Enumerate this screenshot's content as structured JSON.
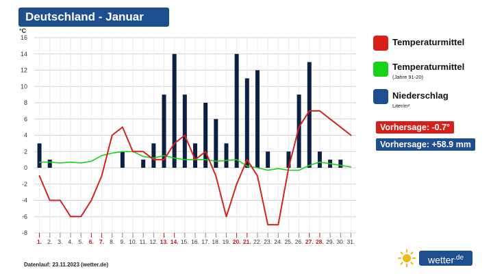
{
  "title": "Deutschland - Januar",
  "colors": {
    "title_bg": "#1d4e8d",
    "temperature": "#d8201a",
    "climate": "#18d418",
    "precipitation": "#0c1f44",
    "precip_legend": "#1d4e8d",
    "weekend_label": "#c0141a"
  },
  "chart_data": {
    "type": "bar+line",
    "unit_label": "°C",
    "ylim": [
      -8,
      16
    ],
    "yticks": [
      -8,
      -6,
      -4,
      -2,
      0,
      2,
      4,
      6,
      8,
      10,
      12,
      14,
      16
    ],
    "grid": true,
    "categories": [
      "1.",
      "2.",
      "3.",
      "4.",
      "5.",
      "6.",
      "7.",
      "8.",
      "9.",
      "10.",
      "11.",
      "12.",
      "13.",
      "14.",
      "15.",
      "16.",
      "17.",
      "18.",
      "19.",
      "20.",
      "21.",
      "22.",
      "23.",
      "24.",
      "25.",
      "26.",
      "27.",
      "28.",
      "29.",
      "30.",
      "31."
    ],
    "weekend_days": [
      "1.",
      "6.",
      "7.",
      "13.",
      "14.",
      "20.",
      "21.",
      "27.",
      "28."
    ],
    "series": [
      {
        "name": "Niederschlag",
        "type": "bar",
        "values": [
          3,
          1,
          0,
          0,
          0,
          0,
          0,
          0,
          2,
          0,
          1,
          3,
          9,
          14,
          9,
          3,
          8,
          6,
          3,
          14,
          11,
          12,
          2,
          0,
          2,
          9,
          13,
          2,
          1,
          1,
          0
        ]
      },
      {
        "name": "Temperaturmittel",
        "type": "line",
        "values": [
          -1,
          -4,
          -4,
          -6,
          -6,
          -4,
          -1,
          4,
          5,
          2,
          2,
          1,
          1,
          3,
          4,
          1,
          2,
          -1,
          -6,
          -2,
          1,
          -1,
          -7,
          -7,
          0,
          5,
          7,
          7,
          null,
          null,
          4
        ]
      },
      {
        "name": "Temperaturmittel (Jahre 91-20)",
        "type": "line",
        "values": [
          0.7,
          0.7,
          0.6,
          0.7,
          0.6,
          0.8,
          1.5,
          1.8,
          2.0,
          2.0,
          1.4,
          1.2,
          1.5,
          1.2,
          1.0,
          1.0,
          1.0,
          0.8,
          0.9,
          1.0,
          0.2,
          0.0,
          -0.3,
          -0.1,
          -0.3,
          -0.3,
          0.3,
          0.7,
          0.5,
          0.3,
          0.1
        ]
      }
    ]
  },
  "legend": [
    {
      "label": "Temperaturmittel",
      "sub": ""
    },
    {
      "label": "Temperaturmittel",
      "sub": "(Jahre 91-20)"
    },
    {
      "label": "Niederschlag",
      "sub": "Liter/m²"
    }
  ],
  "forecast_temp": "Vorhersage: -0.7°",
  "forecast_precip": "Vorhersage: +58.9 mm",
  "footer": "Datenlauf: 23.11.2023 (wetter.de)",
  "logo_text": "wetter",
  "logo_suffix": ".de"
}
